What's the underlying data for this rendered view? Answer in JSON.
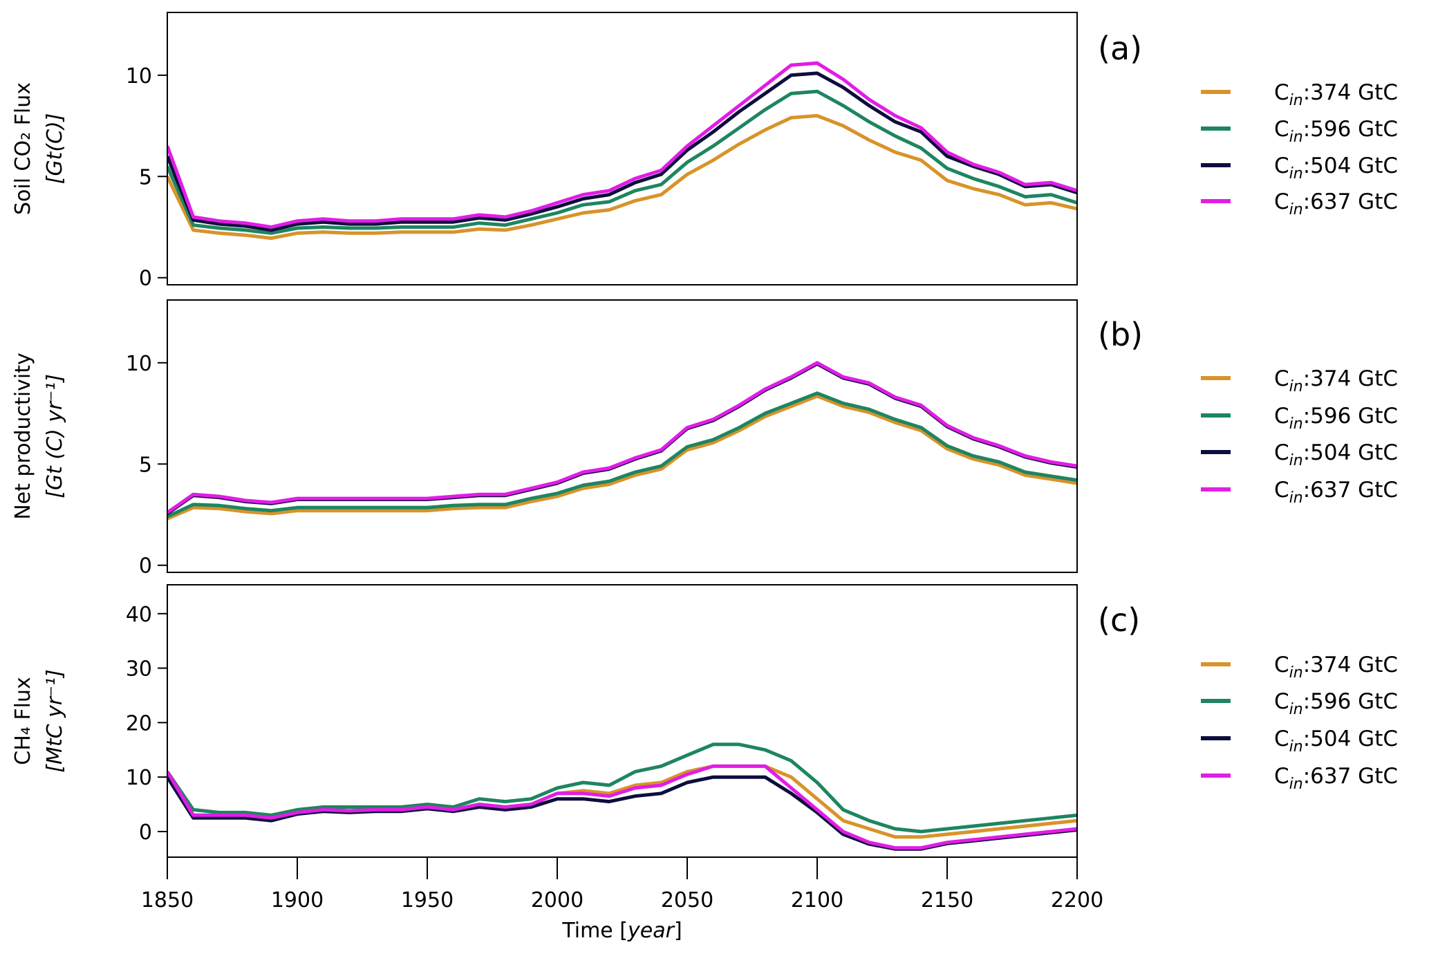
{
  "chart_data": [
    {
      "type": "line",
      "panel_label": "(a)",
      "ylabel": "Soil CO₂ Flux",
      "ylabel_unit": "[Gt(C)]",
      "xlim": [
        1850,
        2200
      ],
      "ylim": [
        -0.35,
        13.1
      ],
      "yticks": [
        0,
        5,
        10
      ],
      "x": [
        1850,
        1860,
        1870,
        1880,
        1890,
        1900,
        1910,
        1920,
        1930,
        1940,
        1950,
        1960,
        1970,
        1980,
        1990,
        2000,
        2010,
        2020,
        2030,
        2040,
        2050,
        2060,
        2070,
        2080,
        2090,
        2100,
        2110,
        2120,
        2130,
        2140,
        2150,
        2160,
        2170,
        2180,
        2190,
        2200
      ],
      "series": [
        {
          "name": {
            "base": "C",
            "sub": "in",
            "text": ":374 GtC"
          },
          "color": "#D8932A",
          "values": [
            5.0,
            2.35,
            2.2,
            2.1,
            1.95,
            2.2,
            2.25,
            2.2,
            2.2,
            2.25,
            2.25,
            2.25,
            2.4,
            2.35,
            2.6,
            2.9,
            3.2,
            3.35,
            3.8,
            4.1,
            5.1,
            5.8,
            6.6,
            7.3,
            7.9,
            8.0,
            7.5,
            6.8,
            6.2,
            5.8,
            4.8,
            4.4,
            4.1,
            3.6,
            3.7,
            3.4
          ]
        },
        {
          "name": {
            "base": "C",
            "sub": "in",
            "text": ":596 GtC"
          },
          "color": "#1E8560",
          "values": [
            5.5,
            2.6,
            2.45,
            2.35,
            2.2,
            2.45,
            2.5,
            2.45,
            2.45,
            2.5,
            2.5,
            2.5,
            2.7,
            2.6,
            2.9,
            3.2,
            3.6,
            3.75,
            4.3,
            4.6,
            5.7,
            6.5,
            7.4,
            8.3,
            9.1,
            9.2,
            8.5,
            7.7,
            7.0,
            6.4,
            5.4,
            4.9,
            4.5,
            4.0,
            4.1,
            3.7
          ]
        },
        {
          "name": {
            "base": "C",
            "sub": "in",
            "text": ":504 GtC"
          },
          "color": "#0D0D3D",
          "values": [
            6.0,
            2.85,
            2.65,
            2.55,
            2.35,
            2.65,
            2.75,
            2.65,
            2.65,
            2.75,
            2.75,
            2.75,
            2.95,
            2.85,
            3.15,
            3.5,
            3.9,
            4.1,
            4.7,
            5.1,
            6.3,
            7.2,
            8.2,
            9.1,
            10.0,
            10.1,
            9.4,
            8.5,
            7.7,
            7.2,
            6.0,
            5.5,
            5.1,
            4.5,
            4.6,
            4.2
          ]
        },
        {
          "name": {
            "base": "C",
            "sub": "in",
            "text": ":637 GtC"
          },
          "color": "#E11DE6",
          "values": [
            6.5,
            3.0,
            2.8,
            2.7,
            2.5,
            2.8,
            2.9,
            2.8,
            2.8,
            2.9,
            2.9,
            2.9,
            3.1,
            3.0,
            3.3,
            3.7,
            4.1,
            4.3,
            4.9,
            5.3,
            6.5,
            7.5,
            8.5,
            9.5,
            10.5,
            10.6,
            9.8,
            8.8,
            8.0,
            7.4,
            6.2,
            5.6,
            5.2,
            4.6,
            4.7,
            4.3
          ]
        }
      ]
    },
    {
      "type": "line",
      "panel_label": "(b)",
      "ylabel": "Net productivity",
      "ylabel_unit": "[Gt (C) yr⁻¹]",
      "xlim": [
        1850,
        2200
      ],
      "ylim": [
        -0.35,
        13.1
      ],
      "yticks": [
        0,
        5,
        10
      ],
      "x": [
        1850,
        1860,
        1870,
        1880,
        1890,
        1900,
        1910,
        1920,
        1930,
        1940,
        1950,
        1960,
        1970,
        1980,
        1990,
        2000,
        2010,
        2020,
        2030,
        2040,
        2050,
        2060,
        2070,
        2080,
        2090,
        2100,
        2110,
        2120,
        2130,
        2140,
        2150,
        2160,
        2170,
        2180,
        2190,
        2200
      ],
      "series": [
        {
          "name": {
            "base": "C",
            "sub": "in",
            "text": ":374 GtC"
          },
          "color": "#D8932A",
          "values": [
            2.3,
            2.85,
            2.8,
            2.65,
            2.55,
            2.7,
            2.7,
            2.7,
            2.7,
            2.7,
            2.7,
            2.8,
            2.85,
            2.85,
            3.15,
            3.4,
            3.8,
            4.0,
            4.45,
            4.75,
            5.7,
            6.05,
            6.65,
            7.35,
            7.85,
            8.35,
            7.85,
            7.55,
            7.05,
            6.65,
            5.75,
            5.25,
            4.95,
            4.45,
            4.25,
            4.05
          ]
        },
        {
          "name": {
            "base": "C",
            "sub": "in",
            "text": ":596 GtC"
          },
          "color": "#1E8560",
          "values": [
            2.4,
            3.0,
            2.95,
            2.8,
            2.7,
            2.85,
            2.85,
            2.85,
            2.85,
            2.85,
            2.85,
            2.95,
            3.0,
            3.0,
            3.3,
            3.55,
            3.95,
            4.15,
            4.6,
            4.9,
            5.85,
            6.2,
            6.8,
            7.5,
            8.0,
            8.5,
            8.0,
            7.7,
            7.2,
            6.8,
            5.9,
            5.4,
            5.1,
            4.6,
            4.4,
            4.2
          ]
        },
        {
          "name": {
            "base": "C",
            "sub": "in",
            "text": ":504 GtC"
          },
          "color": "#0D0D3D",
          "values": [
            2.55,
            3.45,
            3.35,
            3.15,
            3.05,
            3.25,
            3.25,
            3.25,
            3.25,
            3.25,
            3.25,
            3.35,
            3.45,
            3.45,
            3.75,
            4.05,
            4.55,
            4.75,
            5.25,
            5.65,
            6.75,
            7.15,
            7.85,
            8.65,
            9.25,
            9.95,
            9.25,
            8.95,
            8.25,
            7.85,
            6.85,
            6.25,
            5.85,
            5.35,
            5.05,
            4.85
          ]
        },
        {
          "name": {
            "base": "C",
            "sub": "in",
            "text": ":637 GtC"
          },
          "color": "#E11DE6",
          "values": [
            2.6,
            3.5,
            3.4,
            3.2,
            3.1,
            3.3,
            3.3,
            3.3,
            3.3,
            3.3,
            3.3,
            3.4,
            3.5,
            3.5,
            3.8,
            4.1,
            4.6,
            4.8,
            5.3,
            5.7,
            6.8,
            7.2,
            7.9,
            8.7,
            9.3,
            10.0,
            9.3,
            9.0,
            8.3,
            7.9,
            6.9,
            6.3,
            5.9,
            5.4,
            5.1,
            4.9
          ]
        }
      ]
    },
    {
      "type": "line",
      "panel_label": "(c)",
      "ylabel": "CH₄ Flux",
      "ylabel_unit": "[MtC yr⁻¹]",
      "xlabel": "Time [year]",
      "xlim": [
        1850,
        2200
      ],
      "ylim": [
        -4.7,
        45.3
      ],
      "yticks": [
        0,
        10,
        20,
        30,
        40
      ],
      "xticks": [
        1850,
        1900,
        1950,
        2000,
        2050,
        2100,
        2150,
        2200
      ],
      "x": [
        1850,
        1860,
        1870,
        1880,
        1890,
        1900,
        1910,
        1920,
        1930,
        1940,
        1950,
        1960,
        1970,
        1980,
        1990,
        2000,
        2010,
        2020,
        2030,
        2040,
        2050,
        2060,
        2070,
        2080,
        2090,
        2100,
        2110,
        2120,
        2130,
        2140,
        2150,
        2160,
        2170,
        2180,
        2190,
        2200
      ],
      "series": [
        {
          "name": {
            "base": "C",
            "sub": "in",
            "text": ":374 GtC"
          },
          "color": "#D8932A",
          "values": [
            10,
            3,
            2.8,
            2.8,
            2.5,
            3.5,
            4,
            3.8,
            4,
            4,
            4.5,
            4,
            5,
            4.5,
            5,
            7,
            7.5,
            7,
            8.5,
            9,
            11,
            12,
            12,
            12,
            10,
            6,
            2,
            0.5,
            -1,
            -1,
            -0.5,
            0,
            0.5,
            1,
            1.5,
            2
          ]
        },
        {
          "name": {
            "base": "C",
            "sub": "in",
            "text": ":596 GtC"
          },
          "color": "#1E8560",
          "values": [
            11,
            4,
            3.5,
            3.5,
            3,
            4,
            4.5,
            4.5,
            4.5,
            4.5,
            5,
            4.5,
            6,
            5.5,
            6,
            8,
            9,
            8.5,
            11,
            12,
            14,
            16,
            16,
            15,
            13,
            9,
            4,
            2,
            0.5,
            0,
            0.5,
            1,
            1.5,
            2,
            2.5,
            3
          ]
        },
        {
          "name": {
            "base": "C",
            "sub": "in",
            "text": ":504 GtC"
          },
          "color": "#0D0D3D",
          "values": [
            10,
            2.5,
            2.5,
            2.5,
            2,
            3.2,
            3.7,
            3.5,
            3.7,
            3.7,
            4.2,
            3.7,
            4.5,
            4,
            4.5,
            6,
            6,
            5.5,
            6.5,
            7,
            9,
            10,
            10,
            10,
            7,
            3.5,
            -0.5,
            -2.3,
            -3.2,
            -3.2,
            -2.2,
            -1.7,
            -1.2,
            -0.7,
            -0.2,
            0.3
          ]
        },
        {
          "name": {
            "base": "C",
            "sub": "in",
            "text": ":637 GtC"
          },
          "color": "#E11DE6",
          "values": [
            11,
            3,
            3,
            3,
            2.5,
            3.5,
            4,
            3.8,
            4,
            4,
            4.5,
            4,
            5,
            4.5,
            5,
            7,
            7,
            6.5,
            8,
            8.5,
            10.5,
            12,
            12,
            12,
            8,
            4,
            0,
            -2,
            -3,
            -3,
            -2,
            -1.5,
            -1,
            -0.5,
            0,
            0.5
          ]
        }
      ]
    }
  ]
}
